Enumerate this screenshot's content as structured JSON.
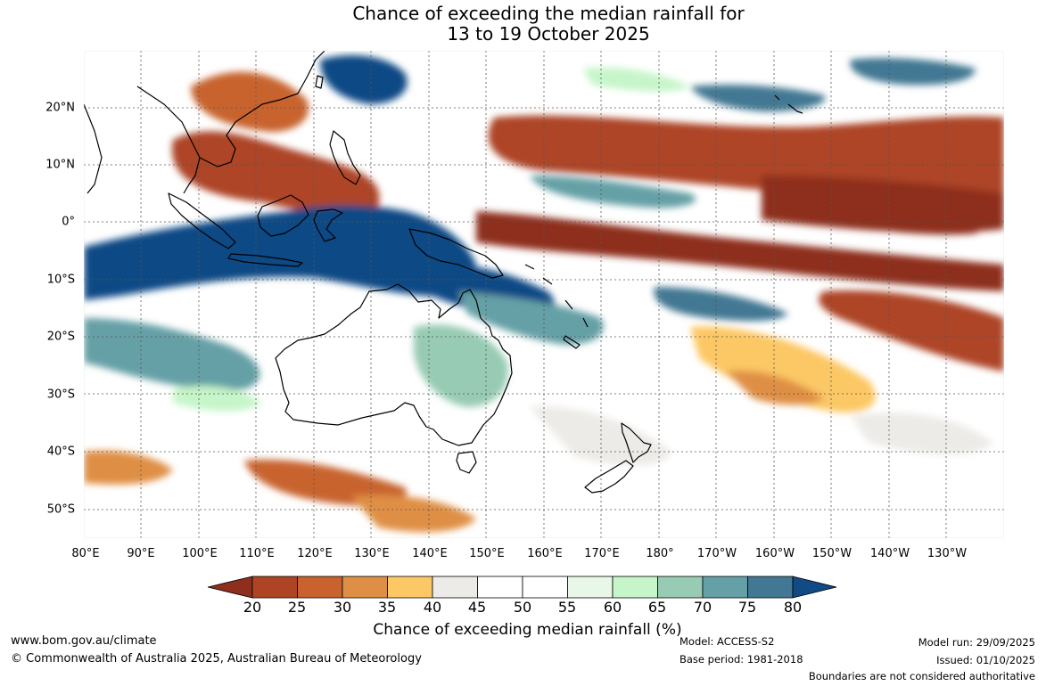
{
  "title": {
    "line1": "Chance of exceeding the median rainfall for",
    "line2": "13 to 19 October 2025"
  },
  "map": {
    "latitude_labels": [
      "20°N",
      "10°N",
      "0°",
      "10°S",
      "20°S",
      "30°S",
      "40°S",
      "50°S"
    ],
    "longitude_labels": [
      "80°E",
      "90°E",
      "100°E",
      "110°E",
      "120°E",
      "130°E",
      "140°E",
      "150°E",
      "160°E",
      "170°E",
      "180°",
      "170°W",
      "160°W",
      "150°W",
      "140°W",
      "130°W"
    ]
  },
  "colorbar": {
    "ticks": [
      "20",
      "25",
      "30",
      "35",
      "40",
      "45",
      "50",
      "55",
      "60",
      "65",
      "70",
      "75",
      "80"
    ],
    "colors": [
      "#8e2f1d",
      "#ad4525",
      "#c8632f",
      "#df8f45",
      "#fcc865",
      "#edebe7",
      "#ffffff",
      "#ffffff",
      "#e8f7e8",
      "#c6f5c9",
      "#98cbb4",
      "#65a0a6",
      "#427893",
      "#114a85"
    ],
    "title": "Chance of exceeding median rainfall (%)"
  },
  "footer": {
    "website": "www.bom.gov.au/climate",
    "copyright": "© Commonwealth of Australia 2025, Australian Bureau of Meteorology",
    "model": "Model: ACCESS-S2",
    "base_period": "Base period: 1981-2018",
    "model_run": "Model run: 29/09/2025",
    "issued": "Issued: 01/10/2025",
    "disclaimer": "Boundaries are not considered authoritative"
  }
}
